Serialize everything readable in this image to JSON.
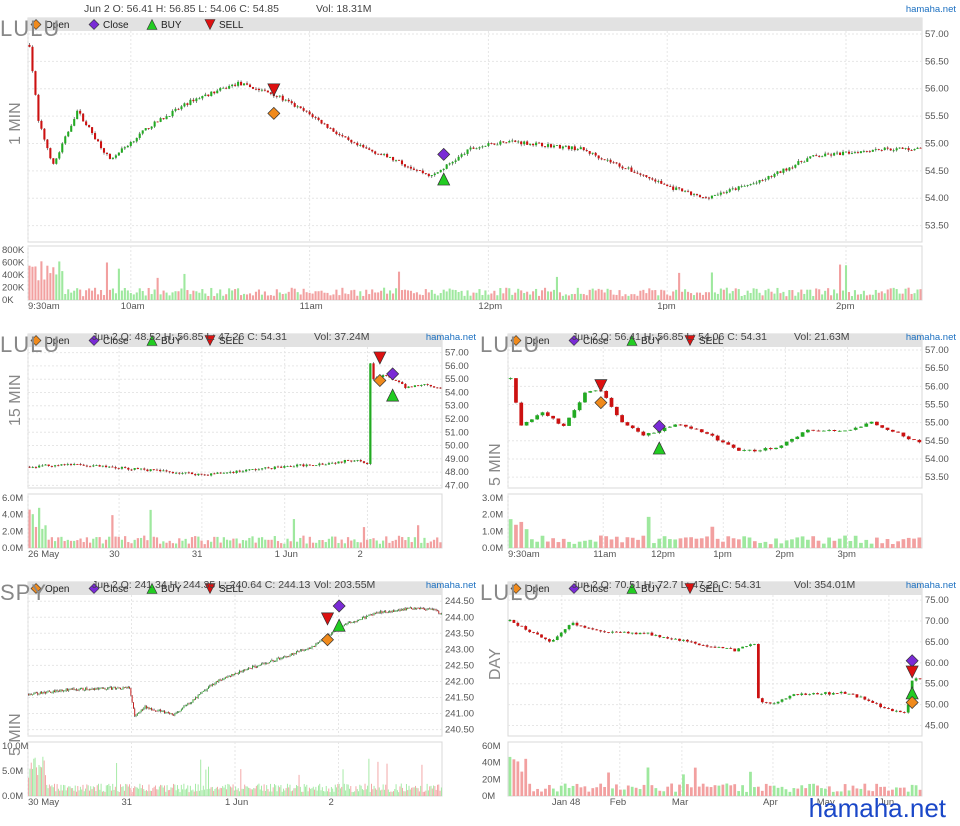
{
  "brand": "hamaha.net",
  "watermark": "hamaha.net",
  "legend": [
    "Open",
    "Close",
    "BUY",
    "SELL"
  ],
  "colors": {
    "up": "#22aa22",
    "down": "#cc1111",
    "volUp": "#9ee89e",
    "volDown": "#f2a0a0",
    "open": "#f08a1c",
    "close": "#7a2bd6",
    "buy": "#22cc22",
    "sell": "#dd1111"
  },
  "chart_data": [
    {
      "type": "candlestick",
      "symbol": "LULU",
      "timeframe": "1 MIN",
      "header": "Jun 2 O: 56.41 H: 56.85 L: 54.06 C: 54.85",
      "volume_label": "Vol: 18.31M",
      "ylim": [
        53.2,
        57.0
      ],
      "y_ticks": [
        "57.00",
        "56.50",
        "56.00",
        "55.50",
        "55.00",
        "54.50",
        "54.00",
        "53.50"
      ],
      "x_ticks": [
        "9:30am",
        "10am",
        "11am",
        "12pm",
        "1pm",
        "2pm"
      ],
      "vol_ticks": [
        "800K",
        "600K",
        "400K",
        "200K",
        "0K"
      ],
      "vol_max": 800,
      "bars": 300,
      "path": [
        [
          0,
          56.8
        ],
        [
          3,
          55.4
        ],
        [
          8,
          54.6
        ],
        [
          16,
          55.6
        ],
        [
          27,
          54.7
        ],
        [
          40,
          55.3
        ],
        [
          55,
          55.8
        ],
        [
          70,
          56.1
        ],
        [
          82,
          55.9
        ],
        [
          95,
          55.5
        ],
        [
          108,
          55.0
        ],
        [
          118,
          54.8
        ],
        [
          135,
          54.4
        ],
        [
          148,
          54.9
        ],
        [
          160,
          55.05
        ],
        [
          185,
          54.9
        ],
        [
          215,
          54.2
        ],
        [
          226,
          54.0
        ],
        [
          245,
          54.3
        ],
        [
          262,
          54.75
        ],
        [
          285,
          54.9
        ],
        [
          300,
          54.9
        ]
      ],
      "markers": [
        {
          "kind": "sell",
          "i": 82,
          "price": 55.98
        },
        {
          "kind": "open",
          "i": 82,
          "price": 55.55
        },
        {
          "kind": "close",
          "i": 139,
          "price": 54.8
        },
        {
          "kind": "buy",
          "i": 139,
          "price": 54.35
        }
      ]
    },
    {
      "type": "candlestick",
      "symbol": "LULU",
      "timeframe": "15 MIN",
      "header": "Jun 2 O: 48.52 H: 56.85 L: 47.26 C: 54.31",
      "volume_label": "Vol: 37.24M",
      "ylim": [
        46.8,
        57.2
      ],
      "y_ticks": [
        "57.00",
        "56.00",
        "55.00",
        "54.00",
        "53.00",
        "52.00",
        "51.00",
        "50.00",
        "49.00",
        "48.00",
        "47.00"
      ],
      "x_ticks": [
        "26 May",
        "30",
        "31",
        "1 Jun",
        "2"
      ],
      "vol_ticks": [
        "6.0M",
        "4.0M",
        "2.0M",
        "0.0M"
      ],
      "vol_max": 6.5,
      "bars": 130,
      "path": [
        [
          0,
          48.4
        ],
        [
          12,
          48.6
        ],
        [
          35,
          48.2
        ],
        [
          55,
          47.8
        ],
        [
          75,
          48.3
        ],
        [
          95,
          48.7
        ],
        [
          103,
          48.95
        ],
        [
          106,
          48.7
        ],
        [
          106.5,
          56.8
        ],
        [
          108,
          55.0
        ],
        [
          112,
          55.3
        ],
        [
          118,
          54.4
        ],
        [
          124,
          54.6
        ],
        [
          130,
          54.3
        ]
      ],
      "markers": [
        {
          "kind": "sell",
          "i": 110,
          "price": 56.6
        },
        {
          "kind": "open",
          "i": 110,
          "price": 54.9
        },
        {
          "kind": "close",
          "i": 114,
          "price": 55.4
        },
        {
          "kind": "buy",
          "i": 114,
          "price": 53.8
        }
      ]
    },
    {
      "type": "candlestick",
      "symbol": "LULU",
      "timeframe": "5 MIN",
      "header": "Jun 2 O: 56.41 H: 56.85 L: 54.06 C: 54.31",
      "volume_label": "Vol: 21.63M",
      "ylim": [
        53.2,
        57.0
      ],
      "y_ticks": [
        "57.00",
        "56.50",
        "56.00",
        "55.50",
        "55.00",
        "54.50",
        "54.00",
        "53.50"
      ],
      "x_ticks": [
        "9:30am",
        "11am",
        "12pm",
        "1pm",
        "2pm",
        "3pm"
      ],
      "vol_ticks": [
        "3.0M",
        "2.0M",
        "1.0M",
        "0.0M"
      ],
      "vol_max": 3.0,
      "bars": 78,
      "path": [
        [
          0,
          56.2
        ],
        [
          2,
          54.9
        ],
        [
          6,
          55.3
        ],
        [
          10,
          54.9
        ],
        [
          14,
          55.8
        ],
        [
          17,
          55.9
        ],
        [
          21,
          55.0
        ],
        [
          25,
          54.65
        ],
        [
          31,
          54.95
        ],
        [
          37,
          54.7
        ],
        [
          43,
          54.2
        ],
        [
          50,
          54.3
        ],
        [
          56,
          54.8
        ],
        [
          62,
          54.75
        ],
        [
          68,
          55.0
        ],
        [
          72,
          54.75
        ],
        [
          78,
          54.4
        ]
      ],
      "markers": [
        {
          "kind": "sell",
          "i": 17,
          "price": 56.02
        },
        {
          "kind": "open",
          "i": 17,
          "price": 55.55
        },
        {
          "kind": "close",
          "i": 28,
          "price": 54.9
        },
        {
          "kind": "buy",
          "i": 28,
          "price": 54.3
        }
      ]
    },
    {
      "type": "candlestick",
      "symbol": "SPY",
      "timeframe": "5 MIN",
      "header": "Jun 2 O: 241.34 H: 244.35 L: 240.64 C: 244.13",
      "volume_label": "Vol: 203.55M",
      "ylim": [
        240.3,
        244.6
      ],
      "y_ticks": [
        "244.50",
        "244.00",
        "243.50",
        "243.00",
        "242.50",
        "242.00",
        "241.50",
        "241.00",
        "240.50"
      ],
      "x_ticks": [
        "30 May",
        "31",
        "1 Jun",
        "2"
      ],
      "vol_ticks": [
        "10.0M",
        "5.0M",
        "0.0M"
      ],
      "vol_max": 10.0,
      "bars": 320,
      "path": [
        [
          0,
          241.6
        ],
        [
          30,
          241.75
        ],
        [
          78,
          241.8
        ],
        [
          82,
          240.9
        ],
        [
          90,
          241.2
        ],
        [
          100,
          241.1
        ],
        [
          112,
          240.95
        ],
        [
          125,
          241.35
        ],
        [
          145,
          242.0
        ],
        [
          170,
          242.4
        ],
        [
          200,
          242.8
        ],
        [
          220,
          243.1
        ],
        [
          240,
          243.7
        ],
        [
          250,
          243.85
        ],
        [
          270,
          244.15
        ],
        [
          300,
          244.3
        ],
        [
          315,
          244.2
        ],
        [
          320,
          244.05
        ]
      ],
      "markers": [
        {
          "kind": "sell",
          "i": 231,
          "price": 243.95
        },
        {
          "kind": "open",
          "i": 231,
          "price": 243.3
        },
        {
          "kind": "close",
          "i": 240,
          "price": 244.35
        },
        {
          "kind": "buy",
          "i": 240,
          "price": 243.75
        }
      ]
    },
    {
      "type": "candlestick",
      "symbol": "LULU",
      "timeframe": "DAY",
      "header": "Jun 2 O: 70.51 H: 72.7 L: 47.26 C: 54.31",
      "volume_label": "Vol: 354.01M",
      "ylim": [
        42.5,
        75.5
      ],
      "y_ticks": [
        "75.00",
        "70.00",
        "65.00",
        "60.00",
        "55.00",
        "50.00",
        "45.00"
      ],
      "x_ticks": [
        "Jan 48",
        "Feb",
        "Mar",
        "Apr",
        "May",
        "Jun"
      ],
      "vol_ticks": [
        "60M",
        "40M",
        "20M",
        "0M"
      ],
      "vol_max": 60,
      "bars": 105,
      "path": [
        [
          0,
          70.0
        ],
        [
          7,
          66.5
        ],
        [
          10,
          65.0
        ],
        [
          16,
          69.5
        ],
        [
          23,
          67.5
        ],
        [
          35,
          67.0
        ],
        [
          45,
          65.0
        ],
        [
          57,
          63.0
        ],
        [
          62,
          64.5
        ],
        [
          62.5,
          51.5
        ],
        [
          66,
          50.0
        ],
        [
          72,
          52.5
        ],
        [
          85,
          52.8
        ],
        [
          90,
          51.5
        ],
        [
          94,
          49.5
        ],
        [
          100,
          48.0
        ],
        [
          101,
          50.0
        ],
        [
          102,
          56.0
        ]
      ],
      "markers": [
        {
          "kind": "close",
          "i": 102,
          "price": 60.5
        },
        {
          "kind": "sell",
          "i": 102,
          "price": 57.8
        },
        {
          "kind": "buy",
          "i": 102,
          "price": 52.8
        },
        {
          "kind": "open",
          "i": 102,
          "price": 50.5
        }
      ]
    }
  ]
}
